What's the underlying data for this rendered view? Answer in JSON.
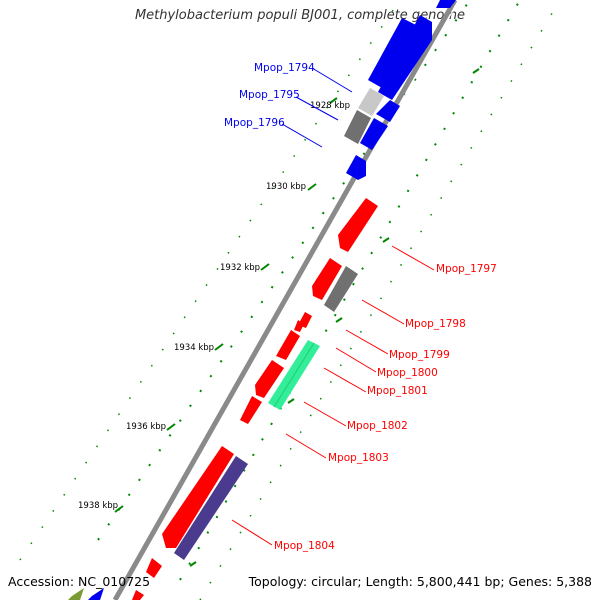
{
  "title": "Methylobacterium populi BJ001, complete genome",
  "footer": {
    "accession": "Accession: NC_010725",
    "topology": "Topology: circular; Length: 5,800,441 bp; Genes: 5,388"
  },
  "colors": {
    "forward_cds": "#ff0000",
    "reverse_cds": "#0000ee",
    "rna": "#33ee99",
    "pseudo": "#707070",
    "highlight": "#c8c8c8",
    "other": "#4b3b8f",
    "backbone": "#8a8a8a",
    "ticks": "#008800"
  },
  "ticks": [
    {
      "label": "1928 kbp"
    },
    {
      "label": "1930 kbp"
    },
    {
      "label": "1932 kbp"
    },
    {
      "label": "1934 kbp"
    },
    {
      "label": "1936 kbp"
    },
    {
      "label": "1938 kbp"
    }
  ],
  "gene_labels": [
    {
      "text": "Mpop_1794",
      "strand": "reverse"
    },
    {
      "text": "Mpop_1795",
      "strand": "reverse"
    },
    {
      "text": "Mpop_1796",
      "strand": "reverse"
    },
    {
      "text": "Mpop_1797",
      "strand": "forward"
    },
    {
      "text": "Mpop_1798",
      "strand": "forward"
    },
    {
      "text": "Mpop_1799",
      "strand": "forward"
    },
    {
      "text": "Mpop_1800",
      "strand": "forward"
    },
    {
      "text": "Mpop_1801",
      "strand": "forward"
    },
    {
      "text": "Mpop_1802",
      "strand": "forward"
    },
    {
      "text": "Mpop_1803",
      "strand": "forward"
    },
    {
      "text": "Mpop_1804",
      "strand": "forward"
    }
  ]
}
